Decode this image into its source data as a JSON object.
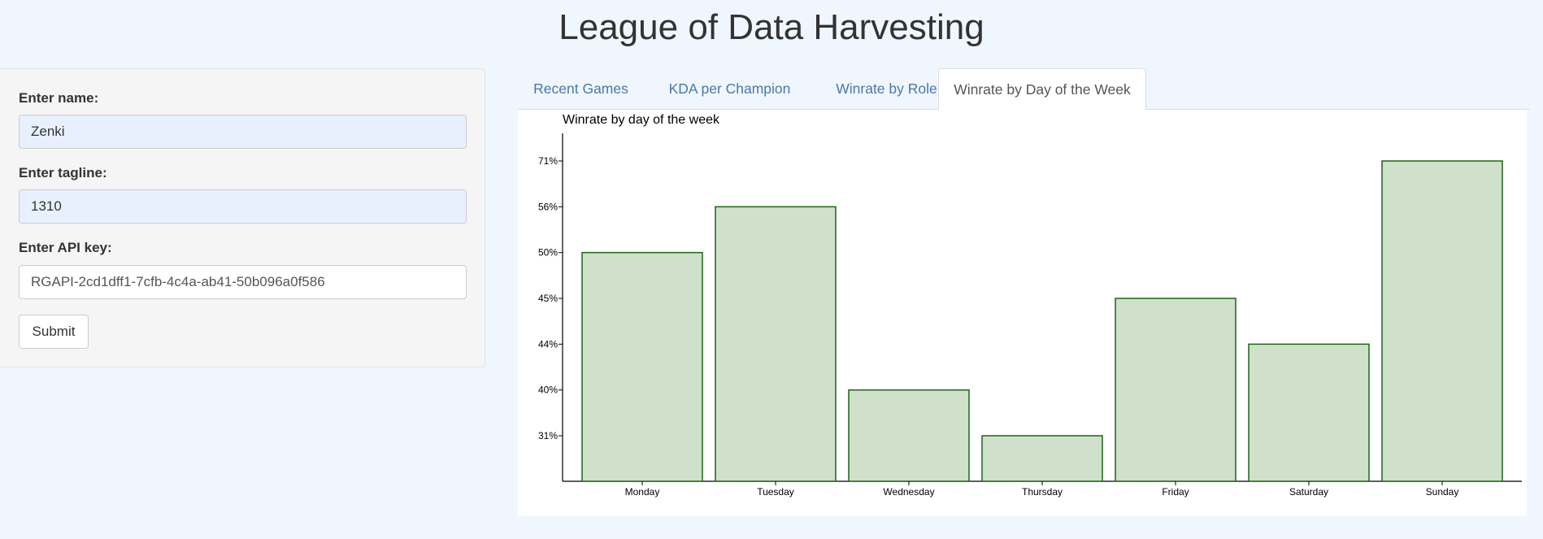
{
  "app": {
    "title": "League of Data Harvesting"
  },
  "form": {
    "name": {
      "label": "Enter name:",
      "value": "Zenki"
    },
    "tagline": {
      "label": "Enter tagline:",
      "value": "1310"
    },
    "api_key": {
      "label": "Enter API key:",
      "value": "RGAPI-2cd1dff1-7cfb-4c4a-ab41-50b096a0f586"
    },
    "submit_label": "Submit"
  },
  "tabs": [
    {
      "label": "Recent Games",
      "active": false
    },
    {
      "label": "KDA per Champion",
      "active": false
    },
    {
      "label": "Winrate by Role",
      "active": false
    },
    {
      "label": "Winrate by Day of the Week",
      "active": true
    }
  ],
  "colors": {
    "page_bg": "#f0f6fe",
    "link": "#4a78a8",
    "bar_fill": "#cfe0cb",
    "bar_stroke": "#1e6414"
  },
  "chart_data": {
    "type": "bar",
    "title": "Winrate by day of the week",
    "xlabel": "",
    "ylabel": "",
    "categories": [
      "Monday",
      "Tuesday",
      "Wednesday",
      "Thursday",
      "Friday",
      "Saturday",
      "Sunday"
    ],
    "values": [
      50,
      56,
      40,
      31,
      45,
      44,
      71
    ],
    "value_labels": [
      "50%",
      "56%",
      "40%",
      "31%",
      "45%",
      "44%",
      "71%"
    ],
    "y_tick_labels": [
      "31%",
      "40%",
      "44%",
      "45%",
      "50%",
      "56%",
      "71%"
    ],
    "y_axis_scale": "ordinal",
    "grid": false,
    "legend": "none"
  }
}
